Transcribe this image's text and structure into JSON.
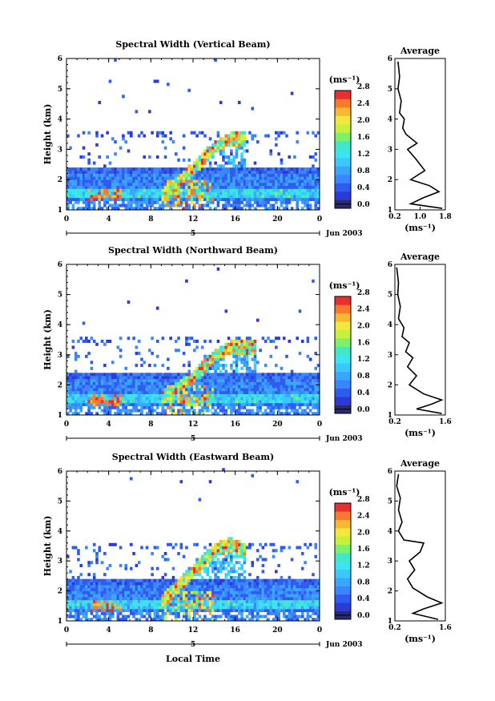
{
  "figure": {
    "x_axis_title": "Local Time",
    "date_label": "Jun 2003",
    "day_label": "5",
    "colorbar_unit": "(ms⁻¹)",
    "avg_title": "Average",
    "avg_xlabel": "(ms⁻¹)"
  },
  "chart_data": [
    {
      "type": "heatmap",
      "title": "Spectral Width (Vertical Beam)",
      "ylabel": "Height (km)",
      "xlabel": "",
      "x_ticks": [
        "0",
        "4",
        "8",
        "12",
        "16",
        "20",
        "0"
      ],
      "xlim": [
        0,
        24
      ],
      "ylim": [
        1,
        6
      ],
      "y_ticks": [
        "1",
        "2",
        "3",
        "4",
        "5",
        "6"
      ],
      "colorbar": {
        "range": [
          0,
          2.8
        ],
        "ticks": [
          "0.0",
          "0.4",
          "0.8",
          "1.2",
          "1.6",
          "2.0",
          "2.4",
          "2.8"
        ]
      },
      "features": {
        "low_layer_top": 2.4,
        "rising_layer": [
          [
            9,
            1.4
          ],
          [
            12,
            2.3
          ],
          [
            14,
            3.0
          ],
          [
            15.5,
            3.3
          ],
          [
            17,
            3.3
          ]
        ],
        "peak_width_region": [
          2,
          5,
          1.3,
          1.7
        ]
      }
    },
    {
      "type": "line",
      "title": "Average",
      "xlabel": "(ms⁻¹)",
      "xlim": [
        0.2,
        1.8
      ],
      "x_ticks": [
        "0.2",
        "1.0",
        "1.8"
      ],
      "ylim": [
        1,
        6
      ],
      "x": [
        0.3,
        0.35,
        0.3,
        0.4,
        0.35,
        0.5,
        0.45,
        0.55,
        0.9,
        0.6,
        0.85,
        1.15,
        0.7,
        1.3,
        1.6,
        1.1,
        0.7,
        1.7
      ],
      "y": [
        5.9,
        5.4,
        5.0,
        4.6,
        4.2,
        4.0,
        3.7,
        3.5,
        3.2,
        3.0,
        2.7,
        2.3,
        2.0,
        1.8,
        1.6,
        1.4,
        1.2,
        1.05
      ]
    },
    {
      "type": "heatmap",
      "title": "Spectral Width (Northward Beam)",
      "ylabel": "Height (km)",
      "xlabel": "",
      "x_ticks": [
        "0",
        "4",
        "8",
        "12",
        "16",
        "20",
        "0"
      ],
      "xlim": [
        0,
        24
      ],
      "ylim": [
        1,
        6
      ],
      "y_ticks": [
        "1",
        "2",
        "3",
        "4",
        "5",
        "6"
      ],
      "colorbar": {
        "range": [
          0,
          2.8
        ],
        "ticks": [
          "0.0",
          "0.4",
          "0.8",
          "1.2",
          "1.6",
          "2.0",
          "2.4",
          "2.8"
        ]
      },
      "features": {
        "low_layer_top": 2.4,
        "rising_layer": [
          [
            9,
            1.5
          ],
          [
            12,
            2.2
          ],
          [
            14,
            2.9
          ],
          [
            15.5,
            3.2
          ],
          [
            18,
            3.2
          ]
        ],
        "peak_width_region": [
          2,
          5,
          1.3,
          1.7
        ]
      }
    },
    {
      "type": "line",
      "title": "Average",
      "xlabel": "(ms⁻¹)",
      "xlim": [
        0.2,
        1.6
      ],
      "x_ticks": [
        "0.2",
        "1.6"
      ],
      "ylim": [
        1,
        6
      ],
      "x": [
        0.25,
        0.3,
        0.28,
        0.35,
        0.3,
        0.45,
        0.4,
        0.6,
        0.5,
        0.7,
        0.55,
        0.8,
        0.6,
        1.0,
        1.5,
        1.2,
        0.8,
        1.5
      ],
      "y": [
        5.9,
        5.4,
        5.0,
        4.6,
        4.2,
        3.9,
        3.6,
        3.4,
        3.1,
        2.9,
        2.6,
        2.3,
        2.0,
        1.7,
        1.5,
        1.35,
        1.2,
        1.05
      ]
    },
    {
      "type": "heatmap",
      "title": "Spectral Width (Eastward Beam)",
      "ylabel": "Height (km)",
      "xlabel": "Local Time",
      "x_ticks": [
        "0",
        "4",
        "8",
        "12",
        "16",
        "20",
        "0"
      ],
      "xlim": [
        0,
        24
      ],
      "ylim": [
        1,
        6
      ],
      "y_ticks": [
        "1",
        "2",
        "3",
        "4",
        "5",
        "6"
      ],
      "colorbar": {
        "range": [
          0,
          2.8
        ],
        "ticks": [
          "0.0",
          "0.4",
          "0.8",
          "1.2",
          "1.6",
          "2.0",
          "2.4",
          "2.8"
        ]
      },
      "features": {
        "low_layer_top": 2.4,
        "rising_layer": [
          [
            9,
            1.6
          ],
          [
            12,
            2.6
          ],
          [
            14,
            3.3
          ],
          [
            15.5,
            3.5
          ],
          [
            17,
            3.3
          ]
        ],
        "peak_width_region": [
          2,
          5,
          1.3,
          1.7
        ]
      }
    },
    {
      "type": "line",
      "title": "Average",
      "xlabel": "(ms⁻¹)",
      "xlim": [
        0.2,
        1.6
      ],
      "x_ticks": [
        "0.2",
        "1.6"
      ],
      "ylim": [
        1,
        6
      ],
      "x": [
        0.3,
        0.25,
        0.35,
        0.3,
        0.4,
        0.3,
        0.45,
        1.0,
        0.9,
        0.6,
        0.75,
        0.55,
        0.7,
        1.1,
        1.5,
        1.0,
        0.7,
        1.4
      ],
      "y": [
        5.9,
        5.5,
        5.1,
        4.7,
        4.3,
        4.0,
        3.7,
        3.6,
        3.3,
        3.0,
        2.7,
        2.4,
        2.1,
        1.8,
        1.6,
        1.4,
        1.25,
        1.05
      ]
    }
  ]
}
